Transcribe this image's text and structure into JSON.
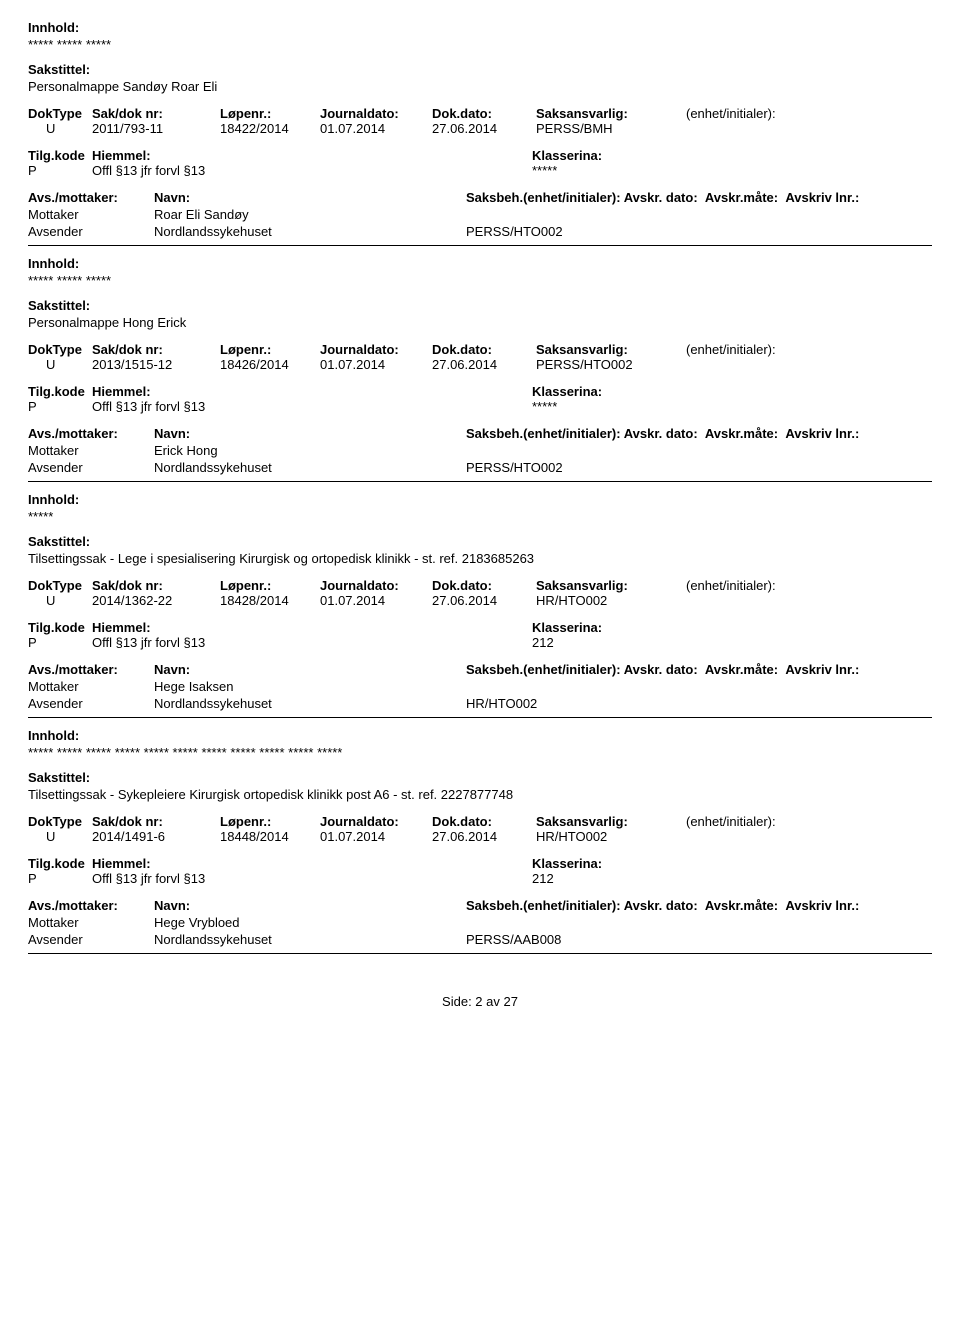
{
  "labels": {
    "innhold": "Innhold:",
    "sakstittel": "Sakstittel:",
    "doktype": "DokType",
    "saknr": "Sak/dok nr:",
    "lopenr": "Løpenr.:",
    "journaldato": "Journaldato:",
    "dokdato": "Dok.dato:",
    "saksansvarlig": "Saksansvarlig:",
    "enhet": "(enhet/initialer):",
    "tilgkode": "Tilg.kode",
    "hjemmel": "Hiemmel:",
    "klassering": "Klasserina:",
    "avsmottaker": "Avs./mottaker:",
    "navn": "Navn:",
    "saksbeh": "Saksbeh.(enhet/initialer):",
    "avskrdato": "Avskr. dato:",
    "avskrmate": "Avskr.måte:",
    "avskrivlnr": "Avskriv lnr.:"
  },
  "entries": [
    {
      "innhold": "***** ***** *****",
      "sakstittel": "Personalmappe Sandøy Roar Eli",
      "doktype": "U",
      "saknr": "2011/793-11",
      "lopenr": "18422/2014",
      "journaldato": "01.07.2014",
      "dokdato": "27.06.2014",
      "saksansvarlig": "PERSS/BMH",
      "tilgkode": "P",
      "hjemmel": "Offl §13 jfr forvl §13",
      "klassering": "*****",
      "show_avs_header": false,
      "parties": [
        {
          "role": "Mottaker",
          "navn": "Roar Eli Sandøy",
          "saksbeh": ""
        },
        {
          "role": "Avsender",
          "navn": "Nordlandssykehuset",
          "saksbeh": "PERSS/HTO002"
        }
      ]
    },
    {
      "innhold": "***** ***** *****",
      "sakstittel": "Personalmappe Hong Erick",
      "doktype": "U",
      "saknr": "2013/1515-12",
      "lopenr": "18426/2014",
      "journaldato": "01.07.2014",
      "dokdato": "27.06.2014",
      "saksansvarlig": "PERSS/HTO002",
      "tilgkode": "P",
      "hjemmel": "Offl §13 jfr forvl §13",
      "klassering": "*****",
      "show_avs_header": false,
      "parties": [
        {
          "role": "Mottaker",
          "navn": "Erick Hong",
          "saksbeh": ""
        },
        {
          "role": "Avsender",
          "navn": "Nordlandssykehuset",
          "saksbeh": "PERSS/HTO002"
        }
      ]
    },
    {
      "innhold": "*****",
      "sakstittel": "Tilsettingssak - Lege i spesialisering Kirurgisk og ortopedisk klinikk - st. ref. 2183685263",
      "doktype": "U",
      "saknr": "2014/1362-22",
      "lopenr": "18428/2014",
      "journaldato": "01.07.2014",
      "dokdato": "27.06.2014",
      "saksansvarlig": "HR/HTO002",
      "tilgkode": "P",
      "hjemmel": "Offl §13 jfr forvl §13",
      "klassering": "212",
      "show_avs_header": true,
      "parties": [
        {
          "role": "Mottaker",
          "navn": "Hege Isaksen",
          "saksbeh": ""
        },
        {
          "role": "Avsender",
          "navn": "Nordlandssykehuset",
          "saksbeh": "HR/HTO002"
        }
      ]
    },
    {
      "innhold": "***** ***** ***** ***** ***** ***** ***** ***** ***** ***** *****",
      "sakstittel": "Tilsettingssak - Sykepleiere Kirurgisk ortopedisk klinikk post A6 - st. ref. 2227877748",
      "doktype": "U",
      "saknr": "2014/1491-6",
      "lopenr": "18448/2014",
      "journaldato": "01.07.2014",
      "dokdato": "27.06.2014",
      "saksansvarlig": "HR/HTO002",
      "tilgkode": "P",
      "hjemmel": "Offl §13 jfr forvl §13",
      "klassering": "212",
      "show_avs_header": true,
      "parties": [
        {
          "role": "Mottaker",
          "navn": "Hege Vrybloed",
          "saksbeh": ""
        },
        {
          "role": "Avsender",
          "navn": "Nordlandssykehuset",
          "saksbeh": "PERSS/AAB008"
        }
      ]
    }
  ],
  "footer": "Side: 2 av 27"
}
